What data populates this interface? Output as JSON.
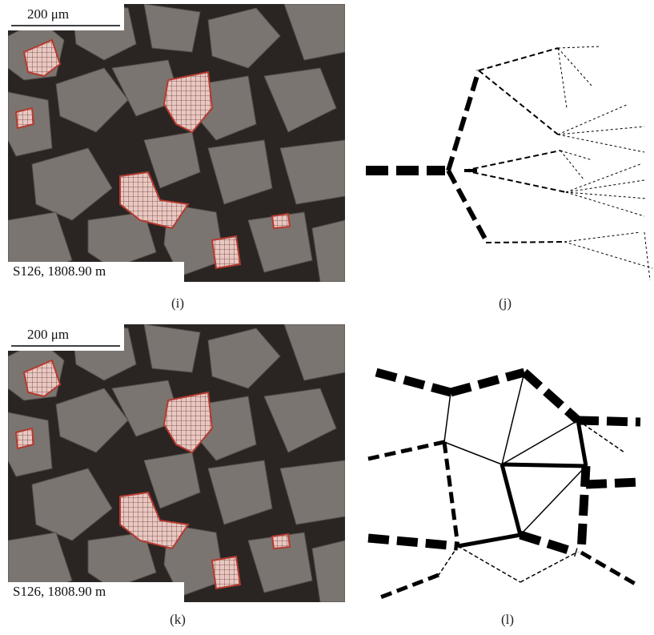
{
  "panels": [
    {
      "scale_bar": "200 μm",
      "sample": "S126, 1808.90 m",
      "caption": "(i)"
    },
    {
      "caption": "(j)"
    },
    {
      "scale_bar": "200 μm",
      "sample": "S126, 1808.90 m",
      "caption": "(k)"
    },
    {
      "caption": "(l)"
    }
  ]
}
